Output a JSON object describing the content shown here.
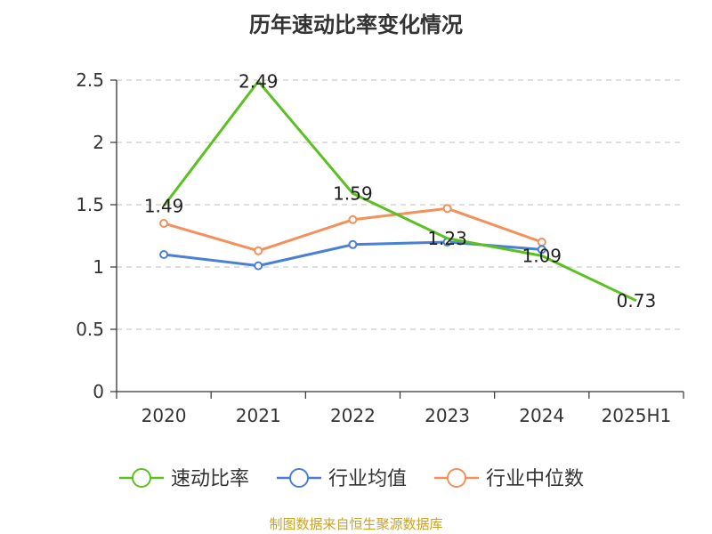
{
  "chart_data": {
    "type": "line",
    "title": "历年速动比率变化情况",
    "categories": [
      "2020",
      "2021",
      "2022",
      "2023",
      "2024",
      "2025H1"
    ],
    "ylim": [
      0,
      2.5
    ],
    "yticks": [
      "0",
      "0.5",
      "1",
      "1.5",
      "2",
      "2.5"
    ],
    "grid": true,
    "legend_position": "bottom",
    "series": [
      {
        "name": "速动比率",
        "color": "#5ac121",
        "values": [
          1.49,
          2.49,
          1.59,
          1.23,
          1.09,
          0.73
        ],
        "labels": [
          "1.49",
          "2.49",
          "1.59",
          "1.23",
          "1.09",
          "0.73"
        ],
        "markers": false
      },
      {
        "name": "行业均值",
        "color": "#4a7fd8",
        "values": [
          1.1,
          1.01,
          1.18,
          1.2,
          1.14,
          null
        ],
        "markers": true
      },
      {
        "name": "行业中位数",
        "color": "#f4905a",
        "values": [
          1.35,
          1.13,
          1.38,
          1.47,
          1.2,
          null
        ],
        "markers": true
      }
    ]
  },
  "source_note": "制图数据来自恒生聚源数据库"
}
